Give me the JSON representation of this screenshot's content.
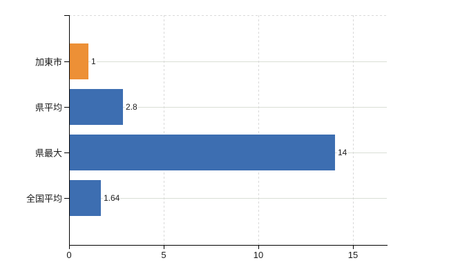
{
  "chart_data": {
    "type": "bar",
    "orientation": "horizontal",
    "title": "",
    "xlabel": "",
    "ylabel": "",
    "categories": [
      "加東市",
      "県平均",
      "県最大",
      "全国平均"
    ],
    "values": [
      1,
      2.8,
      14,
      1.64
    ],
    "value_labels": [
      "1",
      "2.8",
      "14",
      "1.64"
    ],
    "bar_colors": [
      "#ED9036",
      "#3D6EB1",
      "#3D6EB1",
      "#3D6EB1"
    ],
    "x_ticks": [
      0,
      5,
      10,
      15
    ],
    "x_tick_labels": [
      "0",
      "5",
      "10",
      "15"
    ],
    "xlim": [
      0,
      16.8
    ],
    "grid": "on",
    "legend": "none",
    "colors": {
      "axis": "#000000",
      "grid_horizontal": "#D9DED5",
      "grid_vertical": "#D9D9D9",
      "top_border": "#D9D9D9",
      "text": "#1A1A1A",
      "background": "#FFFFFF"
    }
  }
}
